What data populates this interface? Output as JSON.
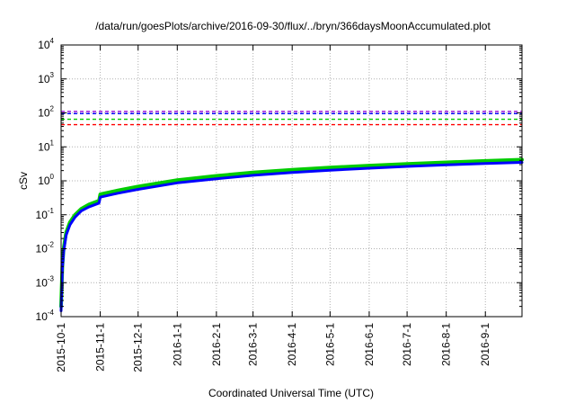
{
  "chart_data": {
    "type": "line",
    "title": "/data/run/goesPlots/archive/2016-09-30/flux/../bryn/366daysMoonAccumulated.plot",
    "xlabel": "Coordinated Universal Time (UTC)",
    "ylabel": "cSv",
    "y_scale": "log",
    "ylim": [
      0.0001,
      10000
    ],
    "xlim": [
      "2015-10-01",
      "2016-09-30"
    ],
    "grid": true,
    "y_tick_labels": [
      {
        "base": "10",
        "exp": "-4"
      },
      {
        "base": "10",
        "exp": "-3"
      },
      {
        "base": "10",
        "exp": "-2"
      },
      {
        "base": "10",
        "exp": "-1"
      },
      {
        "base": "10",
        "exp": "0"
      },
      {
        "base": "10",
        "exp": "1"
      },
      {
        "base": "10",
        "exp": "2"
      },
      {
        "base": "10",
        "exp": "3"
      },
      {
        "base": "10",
        "exp": "4"
      }
    ],
    "x_tick_labels": [
      "2015-10-1",
      "2015-11-1",
      "2015-12-1",
      "2016-1-1",
      "2016-2-1",
      "2016-3-1",
      "2016-4-1",
      "2016-5-1",
      "2016-6-1",
      "2016-7-1",
      "2016-8-1",
      "2016-9-1"
    ],
    "x_tick_dates": [
      "2015-10-01",
      "2015-11-01",
      "2015-12-01",
      "2016-01-01",
      "2016-02-01",
      "2016-03-01",
      "2016-04-01",
      "2016-05-01",
      "2016-06-01",
      "2016-07-01",
      "2016-08-01",
      "2016-09-01"
    ],
    "thresholds": [
      {
        "value": 110,
        "color": "#9400d3",
        "style": "dashed"
      },
      {
        "value": 95,
        "color": "#0000ff",
        "style": "dashed"
      },
      {
        "value": 65,
        "color": "#00cc00",
        "style": "dashed"
      },
      {
        "value": 45,
        "color": "#ff0000",
        "style": "dashed"
      }
    ],
    "series": [
      {
        "color": "#00cc00",
        "x": [
          "2015-10-01",
          "2015-10-02",
          "2015-10-03",
          "2015-10-05",
          "2015-10-08",
          "2015-10-12",
          "2015-10-17",
          "2015-10-23",
          "2015-10-31",
          "2015-11-01",
          "2015-11-15",
          "2015-12-01",
          "2016-01-01",
          "2016-02-01",
          "2016-03-01",
          "2016-04-01",
          "2016-05-01",
          "2016-06-01",
          "2016-07-01",
          "2016-08-01",
          "2016-09-01",
          "2016-09-30"
        ],
        "values": [
          0.0002,
          0.003,
          0.01,
          0.03,
          0.06,
          0.1,
          0.15,
          0.2,
          0.26,
          0.4,
          0.52,
          0.68,
          1.05,
          1.4,
          1.75,
          2.1,
          2.45,
          2.8,
          3.15,
          3.5,
          3.85,
          4.2
        ]
      },
      {
        "color": "#0000ff",
        "x": [
          "2015-10-01",
          "2015-10-02",
          "2015-10-03",
          "2015-10-05",
          "2015-10-08",
          "2015-10-12",
          "2015-10-17",
          "2015-10-23",
          "2015-10-31",
          "2015-11-01",
          "2015-11-15",
          "2015-12-01",
          "2016-01-01",
          "2016-02-01",
          "2016-03-01",
          "2016-04-01",
          "2016-05-01",
          "2016-06-01",
          "2016-07-01",
          "2016-08-01",
          "2016-09-01",
          "2016-09-30"
        ],
        "values": [
          0.00015,
          0.0025,
          0.008,
          0.025,
          0.05,
          0.085,
          0.13,
          0.17,
          0.22,
          0.33,
          0.43,
          0.56,
          0.87,
          1.15,
          1.45,
          1.75,
          2.05,
          2.35,
          2.65,
          2.95,
          3.25,
          3.5
        ]
      }
    ]
  }
}
